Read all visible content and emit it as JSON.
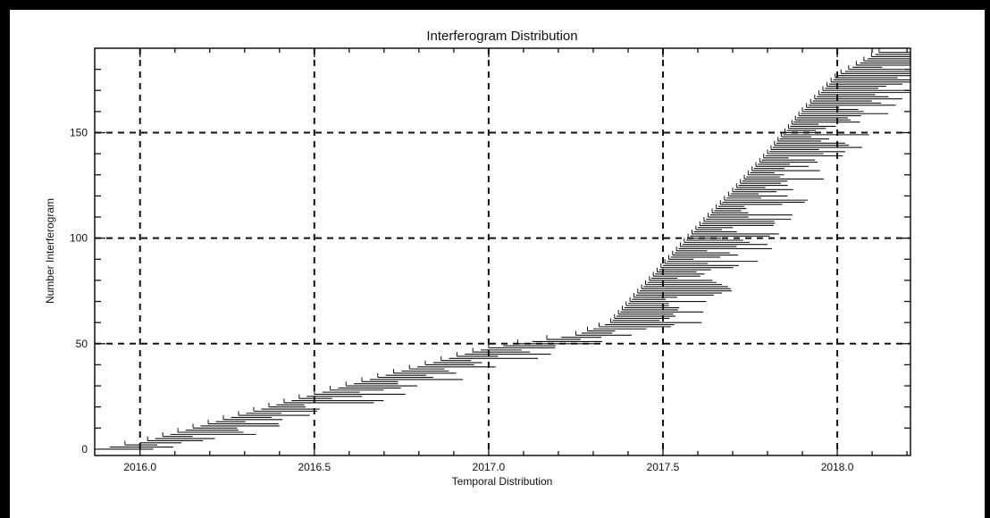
{
  "colors": {
    "ink": "#111111",
    "background": "#ffffff",
    "frame": "#000000"
  },
  "chart_data": {
    "type": "line",
    "title": "Interferogram Distribution",
    "xlabel": "Temporal Distribution",
    "ylabel": "Number Interferogram",
    "xlim": [
      2015.87,
      2018.21
    ],
    "ylim": [
      -3,
      190
    ],
    "xticks": [
      2016.0,
      2016.5,
      2017.0,
      2017.5,
      2018.0
    ],
    "xtick_labels": [
      "2016.0",
      "2016.5",
      "2017.0",
      "2017.5",
      "2018.0"
    ],
    "yticks": [
      0,
      50,
      100,
      150
    ],
    "ytick_labels": [
      "0",
      "50",
      "100",
      "150"
    ],
    "grid": true,
    "grid_style": "dashed",
    "series": [
      {
        "style": "horizontal segments per interferogram (start date to end date)",
        "cumulative_count_anchors": [
          [
            2015.87,
            0
          ],
          [
            2016.0,
            3
          ],
          [
            2016.5,
            26
          ],
          [
            2017.0,
            48
          ],
          [
            2017.25,
            54
          ],
          [
            2017.35,
            60
          ],
          [
            2017.5,
            87
          ],
          [
            2017.6,
            105
          ],
          [
            2017.7,
            122
          ],
          [
            2017.8,
            140
          ],
          [
            2017.9,
            160
          ],
          [
            2018.0,
            177
          ],
          [
            2018.12,
            188
          ]
        ]
      }
    ]
  }
}
